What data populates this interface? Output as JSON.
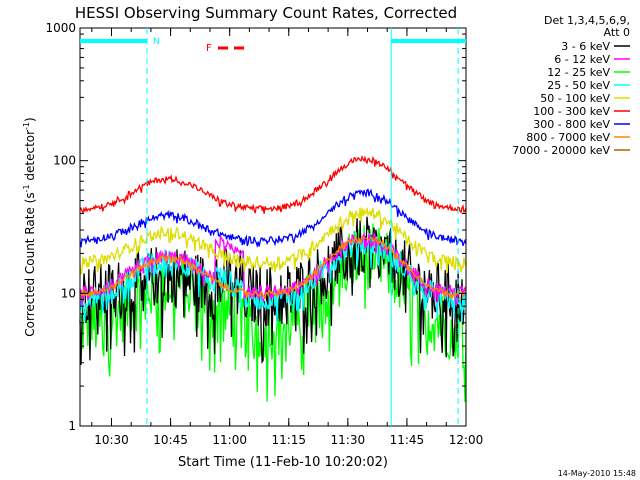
{
  "chart_data": {
    "type": "line",
    "title": "HESSI Observing Summary Count Rates, Corrected",
    "xlabel": "Start Time (11-Feb-10 10:20:02)",
    "ylabel": "Corrected Count Rate (s",
    "ylabel_sup": "-1",
    "ylabel_mid": " detector",
    "ylabel_sup2": "-1",
    "ylabel_end": ")",
    "yscale": "log",
    "ylim": [
      1,
      1000
    ],
    "xlim": [
      "10:22",
      "12:00"
    ],
    "x_tick_labels": [
      "10:30",
      "10:45",
      "11:00",
      "11:15",
      "11:30",
      "11:45",
      "12:00"
    ],
    "y_tick_labels": [
      "1",
      "10",
      "100",
      "1000"
    ],
    "legend_header": [
      "Det 1,3,4,5,6,9,",
      "Att 0"
    ],
    "series": [
      {
        "name": "3 - 6 keV",
        "color": "#000000",
        "base": 9.5,
        "peaks": [
          [
            10.74,
            1.45,
            0.0045
          ],
          [
            11.57,
            2.3,
            0.004
          ]
        ],
        "noise": 0.55,
        "flare_boost": 1.3
      },
      {
        "name": "6 - 12 keV",
        "color": "#ff00ff",
        "base": 10,
        "peaks": [
          [
            10.74,
            1.9,
            0.0045
          ],
          [
            11.57,
            2.6,
            0.004
          ]
        ],
        "noise": 0.12,
        "flare_boost": 2.0
      },
      {
        "name": "12 - 25 keV",
        "color": "#00ff00",
        "base": 5.5,
        "peaks": [
          [
            10.74,
            2.2,
            0.0045
          ],
          [
            11.57,
            3.5,
            0.004
          ]
        ],
        "noise": 0.6,
        "flare_boost": 1.1
      },
      {
        "name": "25 - 50 keV",
        "color": "#00ffff",
        "base": 9,
        "peaks": [
          [
            10.74,
            2.0,
            0.0045
          ],
          [
            11.57,
            2.7,
            0.004
          ]
        ],
        "noise": 0.2,
        "flare_boost": 1.2
      },
      {
        "name": "50 - 100 keV",
        "color": "#dddd00",
        "base": 17,
        "peaks": [
          [
            10.74,
            1.7,
            0.0045
          ],
          [
            11.57,
            2.4,
            0.004
          ]
        ],
        "noise": 0.1,
        "flare_boost": 1.0
      },
      {
        "name": "100 - 300 keV",
        "color": "#ff0000",
        "base": 43,
        "peaks": [
          [
            10.74,
            1.7,
            0.0045
          ],
          [
            11.57,
            2.4,
            0.004
          ]
        ],
        "noise": 0.05,
        "flare_boost": 1.0
      },
      {
        "name": "300 - 800 keV",
        "color": "#0000ff",
        "base": 25,
        "peaks": [
          [
            10.74,
            1.55,
            0.0045
          ],
          [
            11.57,
            2.3,
            0.004
          ]
        ],
        "noise": 0.06,
        "flare_boost": 1.0
      },
      {
        "name": "800 - 7000 keV",
        "color": "#ff8800",
        "base": 9.8,
        "peaks": [
          [
            10.74,
            1.9,
            0.0045
          ],
          [
            11.57,
            2.7,
            0.004
          ]
        ],
        "noise": 0.05,
        "flare_boost": 1.0
      },
      {
        "name": "7000 - 20000 keV",
        "color": "#aa6600",
        "base": 0.5,
        "peaks": [],
        "noise": 0.0,
        "flare_boost": 1.0
      }
    ],
    "saa_marker": {
      "label": "N",
      "color": "#00ffff"
    },
    "flare_marker": {
      "label": "F",
      "color": "#ff0000"
    },
    "vlines_dashed": [
      "10:39",
      "11:58"
    ],
    "vlines_solid": [
      "11:41"
    ],
    "footer": "14-May-2010 15:48"
  }
}
